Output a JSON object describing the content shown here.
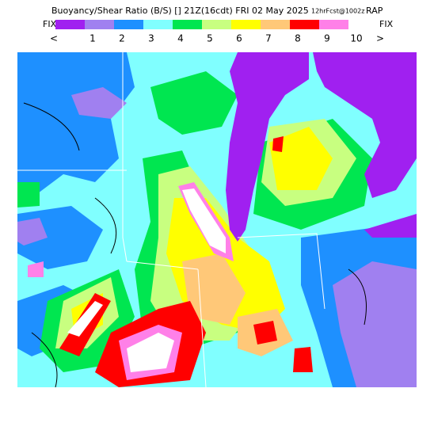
{
  "header": {
    "title": "Buoyancy/Shear Ratio (B/S) [] 21Z(16cdt) FRI 02 May 2025",
    "forecast": "12hrFcst@1002z",
    "model": "RAP"
  },
  "legend": {
    "left": "FIX",
    "right": "FIX",
    "labels": [
      "<",
      1,
      2,
      3,
      4,
      5,
      6,
      7,
      8,
      9,
      10,
      ">"
    ],
    "colors": [
      "#a020f0",
      "#a080f0",
      "#1e90ff",
      "#80ffff",
      "#00e650",
      "#c8ff80",
      "#ffff00",
      "#ffc878",
      "#ff0000",
      "#ff80e8"
    ]
  }
}
